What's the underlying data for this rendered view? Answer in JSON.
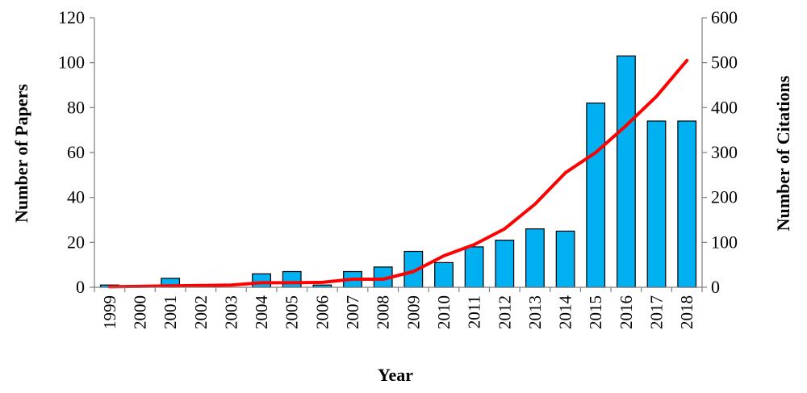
{
  "chart_data": {
    "type": "bar",
    "xlabel": "Year",
    "ylabel": "Number of Papers",
    "y2label": "Number of Citations",
    "categories": [
      "1999",
      "2000",
      "2001",
      "2002",
      "2003",
      "2004",
      "2005",
      "2006",
      "2007",
      "2008",
      "2009",
      "2010",
      "2011",
      "2012",
      "2013",
      "2014",
      "2015",
      "2016",
      "2017",
      "2018"
    ],
    "ylim": [
      0,
      120
    ],
    "y2lim": [
      0,
      600
    ],
    "yticks": [
      "0",
      "20",
      "40",
      "60",
      "80",
      "100",
      "120"
    ],
    "y2ticks": [
      "0",
      "100",
      "200",
      "300",
      "400",
      "500",
      "600"
    ],
    "grid": false,
    "series": [
      {
        "type": "bar",
        "axis": "left",
        "color": "#00B0F0",
        "values": [
          1,
          0,
          4,
          0,
          0,
          6,
          7,
          1,
          7,
          9,
          16,
          11,
          18,
          21,
          26,
          25,
          82,
          103,
          74,
          74
        ]
      },
      {
        "type": "line",
        "axis": "right",
        "color": "#FF0000",
        "values": [
          1,
          2,
          3,
          4,
          5,
          10,
          10,
          11,
          18,
          18,
          35,
          70,
          95,
          130,
          185,
          255,
          300,
          360,
          425,
          505
        ]
      }
    ]
  }
}
